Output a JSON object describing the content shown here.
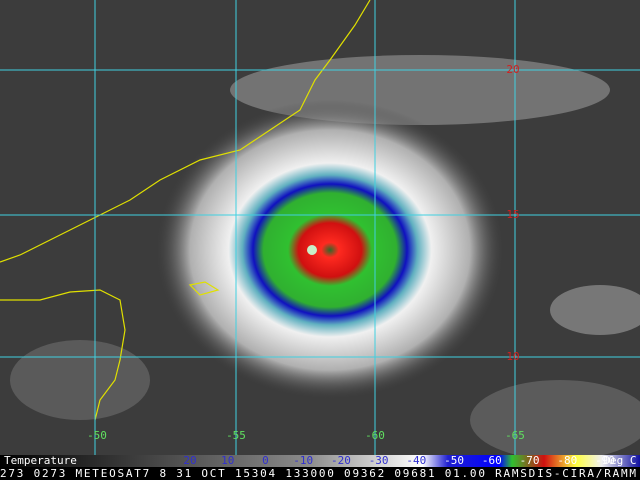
{
  "grid": {
    "lat_labels": [
      "20",
      "15",
      "10"
    ],
    "lon_labels": [
      "-50",
      "-55",
      "-60",
      "-65"
    ]
  },
  "colorbar": {
    "title": "Temperature",
    "labels": [
      "20",
      "10",
      "0",
      "-10",
      "-20",
      "-30",
      "-40",
      "-50",
      "-60",
      "-70",
      "-80",
      "-90"
    ],
    "unit": "Deg C"
  },
  "footer": {
    "text": "273 0273 METEOSAT7   8 31 OCT 15304 133000 09362 09681 01.00 RAMSDIS-CIRA/RAMM"
  }
}
